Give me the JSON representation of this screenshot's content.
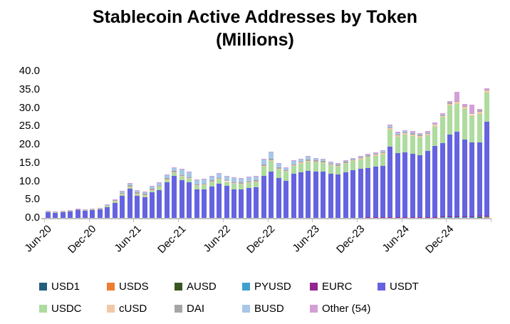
{
  "title": {
    "line1": "Stablecoin Active Addresses by Token",
    "line2": "(Millions)"
  },
  "chart_data": {
    "type": "bar",
    "stacked": true,
    "title": "Stablecoin Active Addresses by Token (Millions)",
    "xlabel": "",
    "ylabel": "",
    "ylim": [
      0,
      40
    ],
    "y_ticks": [
      "0.0",
      "5.0",
      "10.0",
      "15.0",
      "20.0",
      "25.0",
      "30.0",
      "35.0",
      "40.0"
    ],
    "x_tick_labels": [
      "Jun-20",
      "Dec-20",
      "Jun-21",
      "Dec-21",
      "Jun-22",
      "Dec-22",
      "Jun-23",
      "Dec-23",
      "Jun-24",
      "Dec-24"
    ],
    "grid": false,
    "legend_position": "bottom",
    "axis_color": "#bfbfbf",
    "categories": [
      "Jun-20",
      "Jul-20",
      "Aug-20",
      "Sep-20",
      "Oct-20",
      "Nov-20",
      "Dec-20",
      "Jan-21",
      "Feb-21",
      "Mar-21",
      "Apr-21",
      "May-21",
      "Jun-21",
      "Jul-21",
      "Aug-21",
      "Sep-21",
      "Oct-21",
      "Nov-21",
      "Dec-21",
      "Jan-22",
      "Feb-22",
      "Mar-22",
      "Apr-22",
      "May-22",
      "Jun-22",
      "Jul-22",
      "Aug-22",
      "Sep-22",
      "Oct-22",
      "Nov-22",
      "Dec-22",
      "Jan-23",
      "Feb-23",
      "Mar-23",
      "Apr-23",
      "May-23",
      "Jun-23",
      "Jul-23",
      "Aug-23",
      "Sep-23",
      "Oct-23",
      "Nov-23",
      "Dec-23",
      "Jan-24",
      "Feb-24",
      "Mar-24",
      "Apr-24",
      "May-24",
      "Jun-24",
      "Jul-24",
      "Aug-24",
      "Sep-24",
      "Oct-24",
      "Nov-24",
      "Dec-24",
      "Jan-25",
      "Feb-25",
      "Mar-25",
      "Apr-25",
      "May-25"
    ],
    "series": [
      {
        "name": "USD1",
        "color": "#235f7b",
        "values": [
          0,
          0,
          0,
          0,
          0,
          0,
          0,
          0,
          0,
          0,
          0,
          0,
          0,
          0,
          0,
          0,
          0,
          0,
          0,
          0,
          0,
          0,
          0,
          0,
          0,
          0,
          0,
          0,
          0,
          0,
          0,
          0,
          0,
          0,
          0,
          0,
          0,
          0,
          0,
          0,
          0,
          0,
          0,
          0,
          0,
          0,
          0,
          0,
          0,
          0,
          0,
          0,
          0,
          0,
          0,
          0,
          0,
          0,
          0.05,
          0.1
        ]
      },
      {
        "name": "USDS",
        "color": "#ed7d31",
        "values": [
          0,
          0,
          0,
          0,
          0,
          0,
          0,
          0,
          0,
          0,
          0,
          0,
          0,
          0,
          0,
          0,
          0,
          0,
          0,
          0,
          0,
          0,
          0,
          0,
          0,
          0,
          0,
          0,
          0,
          0,
          0,
          0,
          0,
          0,
          0,
          0,
          0,
          0,
          0,
          0,
          0,
          0,
          0,
          0,
          0,
          0,
          0,
          0,
          0,
          0,
          0,
          0,
          0,
          0.05,
          0.05,
          0.1,
          0.1,
          0.1,
          0.15,
          0.15
        ]
      },
      {
        "name": "AUSD",
        "color": "#375623",
        "values": [
          0,
          0,
          0,
          0,
          0,
          0,
          0,
          0,
          0,
          0,
          0,
          0,
          0,
          0,
          0,
          0,
          0,
          0,
          0,
          0,
          0,
          0,
          0,
          0,
          0,
          0,
          0,
          0,
          0,
          0,
          0,
          0,
          0,
          0,
          0,
          0,
          0,
          0,
          0,
          0,
          0,
          0,
          0,
          0,
          0,
          0,
          0,
          0,
          0,
          0,
          0,
          0,
          0,
          0,
          0,
          0.05,
          0.05,
          0.05,
          0.05,
          0.05
        ]
      },
      {
        "name": "PYUSD",
        "color": "#3fa0cc",
        "values": [
          0,
          0,
          0,
          0,
          0,
          0,
          0,
          0,
          0,
          0,
          0,
          0,
          0,
          0,
          0,
          0,
          0,
          0,
          0,
          0,
          0,
          0,
          0,
          0,
          0,
          0,
          0,
          0,
          0,
          0,
          0,
          0,
          0,
          0,
          0,
          0,
          0,
          0,
          0,
          0.05,
          0.05,
          0.05,
          0.05,
          0.05,
          0.05,
          0.1,
          0.1,
          0.1,
          0.1,
          0.1,
          0.1,
          0.1,
          0.1,
          0.1,
          0.1,
          0.1,
          0.1,
          0.1,
          0.1,
          0.1
        ]
      },
      {
        "name": "EURC",
        "color": "#92278f",
        "values": [
          0,
          0,
          0,
          0,
          0,
          0,
          0,
          0,
          0,
          0,
          0,
          0,
          0,
          0,
          0,
          0,
          0,
          0,
          0,
          0,
          0,
          0,
          0,
          0,
          0,
          0,
          0,
          0,
          0,
          0,
          0,
          0,
          0,
          0,
          0,
          0,
          0,
          0,
          0,
          0,
          0,
          0,
          0,
          0.05,
          0.05,
          0.05,
          0.05,
          0.05,
          0.05,
          0.1,
          0.1,
          0.1,
          0.1,
          0.15,
          0.15,
          0.15,
          0.15,
          0.15,
          0.15,
          0.15
        ]
      },
      {
        "name": "USDT",
        "color": "#6563e0",
        "values": [
          1.65,
          1.45,
          1.65,
          1.8,
          2.05,
          1.95,
          2.15,
          2.25,
          2.95,
          4.15,
          6.0,
          7.9,
          6.05,
          5.7,
          6.95,
          7.6,
          9.65,
          11.45,
          10.3,
          9.75,
          7.7,
          7.8,
          8.55,
          9.35,
          8.65,
          7.8,
          7.8,
          8.1,
          8.3,
          11.4,
          12.6,
          10.85,
          10.05,
          11.95,
          12.45,
          12.85,
          12.65,
          12.55,
          12.05,
          11.7,
          12.3,
          12.9,
          13.35,
          13.55,
          13.8,
          14.0,
          19.3,
          17.5,
          17.75,
          17.3,
          16.8,
          18.1,
          19.35,
          20.0,
          22.5,
          23.1,
          20.9,
          20.15,
          20.1,
          25.75
        ]
      },
      {
        "name": "USDC",
        "color": "#aedb9e",
        "values": [
          0.15,
          0.15,
          0.15,
          0.2,
          0.2,
          0.2,
          0.2,
          0.25,
          0.3,
          0.4,
          0.5,
          0.6,
          0.5,
          0.5,
          0.6,
          0.8,
          0.8,
          0.9,
          1.0,
          1.0,
          1.1,
          1.2,
          1.2,
          1.1,
          1.2,
          1.5,
          1.4,
          1.4,
          1.5,
          2.6,
          3.0,
          2.4,
          2.5,
          2.2,
          2.4,
          2.5,
          2.5,
          2.4,
          2.3,
          2.3,
          2.4,
          2.5,
          2.6,
          2.8,
          3.0,
          3.2,
          4.6,
          4.5,
          4.8,
          4.9,
          5.0,
          4.2,
          5.3,
          7.0,
          7.8,
          7.6,
          8.4,
          7.2,
          7.8,
          7.9
        ]
      },
      {
        "name": "cUSD",
        "color": "#f2c9a8",
        "values": [
          0,
          0,
          0,
          0,
          0,
          0,
          0,
          0,
          0,
          0.05,
          0.05,
          0.05,
          0.05,
          0.05,
          0.05,
          0.1,
          0.1,
          0.1,
          0.1,
          0.1,
          0.1,
          0.1,
          0.15,
          0.15,
          0.15,
          0.15,
          0.15,
          0.15,
          0.15,
          0.2,
          0.2,
          0.2,
          0.2,
          0.2,
          0.2,
          0.2,
          0.2,
          0.2,
          0.2,
          0.2,
          0.2,
          0.2,
          0.25,
          0.3,
          0.3,
          0.3,
          0.35,
          0.4,
          0.4,
          0.4,
          0.4,
          0.4,
          0.5,
          0.5,
          0.5,
          0.5,
          0.5,
          0.5,
          0.5,
          0.5
        ]
      },
      {
        "name": "DAI",
        "color": "#a6a6a6",
        "values": [
          0.15,
          0.15,
          0.15,
          0.15,
          0.15,
          0.15,
          0.15,
          0.2,
          0.2,
          0.25,
          0.3,
          0.3,
          0.3,
          0.3,
          0.3,
          0.3,
          0.3,
          0.3,
          0.3,
          0.3,
          0.3,
          0.3,
          0.3,
          0.3,
          0.3,
          0.3,
          0.3,
          0.3,
          0.3,
          0.3,
          0.3,
          0.3,
          0.3,
          0.3,
          0.3,
          0.3,
          0.3,
          0.3,
          0.3,
          0.3,
          0.3,
          0.25,
          0.25,
          0.25,
          0.25,
          0.25,
          0.25,
          0.25,
          0.25,
          0.25,
          0.3,
          0.3,
          0.3,
          0.3,
          0.35,
          0.3,
          0.3,
          0.3,
          0.4,
          0.3
        ]
      },
      {
        "name": "BUSD",
        "color": "#a7c7e7",
        "values": [
          0,
          0,
          0,
          0,
          0.05,
          0.05,
          0.05,
          0.05,
          0.1,
          0.15,
          0.45,
          0.55,
          0.6,
          0.55,
          0.7,
          0.8,
          0.9,
          0.9,
          1.5,
          1.4,
          1.2,
          1.2,
          1.2,
          1.3,
          1.1,
          1.2,
          1.1,
          1.1,
          1.0,
          1.4,
          1.8,
          1.0,
          0.6,
          1.0,
          0.7,
          0.8,
          0.6,
          0.5,
          0.4,
          0.3,
          0.3,
          0.25,
          0.2,
          0.2,
          0.25,
          0.3,
          0.4,
          0.35,
          0.3,
          0.25,
          0.2,
          0.1,
          0.05,
          0.05,
          0,
          0,
          0,
          0,
          0,
          0
        ]
      },
      {
        "name": "Other (54)",
        "color": "#d49fd6",
        "values": [
          0.05,
          0.05,
          0.05,
          0.05,
          0.05,
          0.05,
          0.05,
          0.05,
          0.05,
          0.1,
          0.1,
          0.1,
          0.1,
          0.1,
          0.1,
          0.1,
          0.15,
          0.15,
          0.2,
          0.15,
          0.1,
          0.1,
          0.1,
          0.1,
          0.1,
          0.15,
          0.15,
          0.15,
          0.15,
          0.2,
          0.2,
          0.15,
          0.15,
          0.15,
          0.15,
          0.15,
          0.15,
          0.15,
          0.15,
          0.15,
          0.15,
          0.15,
          0.2,
          0.2,
          0.2,
          0.2,
          0.3,
          0.3,
          0.3,
          0.3,
          0.3,
          0.3,
          0.3,
          0.3,
          0.4,
          2.4,
          0.5,
          2.3,
          0.5,
          0.4
        ]
      }
    ]
  }
}
